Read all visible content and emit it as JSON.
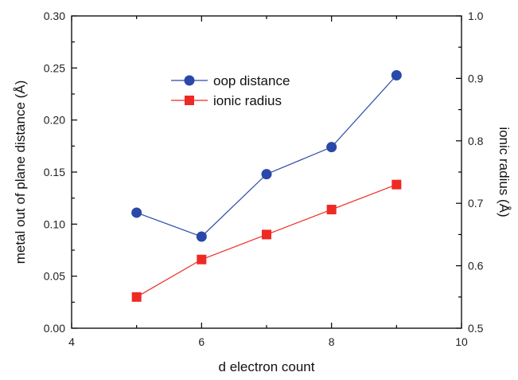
{
  "chart_data": {
    "type": "line",
    "xlabel": "d electron count",
    "ylabel": "metal out of plane distance (Å)",
    "y2label": "ionic radius (Å)",
    "xlim": [
      4,
      10
    ],
    "ylim": [
      0,
      0.3
    ],
    "y2lim": [
      0.5,
      1.0
    ],
    "x_ticks": [
      "4",
      "6",
      "8",
      "10"
    ],
    "y_ticks": [
      "0.00",
      "0.05",
      "0.10",
      "0.15",
      "0.20",
      "0.25",
      "0.30"
    ],
    "y2_ticks": [
      "0.5",
      "0.6",
      "0.7",
      "0.8",
      "0.9",
      "1.0"
    ],
    "legend_position": "upper-center",
    "grid": false,
    "series": [
      {
        "name": "oop distance",
        "axis": "left",
        "color": "#2a48a8",
        "marker": "circle",
        "x": [
          5,
          6,
          7,
          8,
          9
        ],
        "values": [
          0.111,
          0.088,
          0.148,
          0.174,
          0.243
        ]
      },
      {
        "name": "ionic radius",
        "axis": "right",
        "color": "#ee2a24",
        "marker": "square",
        "x": [
          5,
          6,
          7,
          8,
          9
        ],
        "values": [
          0.55,
          0.61,
          0.65,
          0.69,
          0.73
        ]
      }
    ]
  }
}
